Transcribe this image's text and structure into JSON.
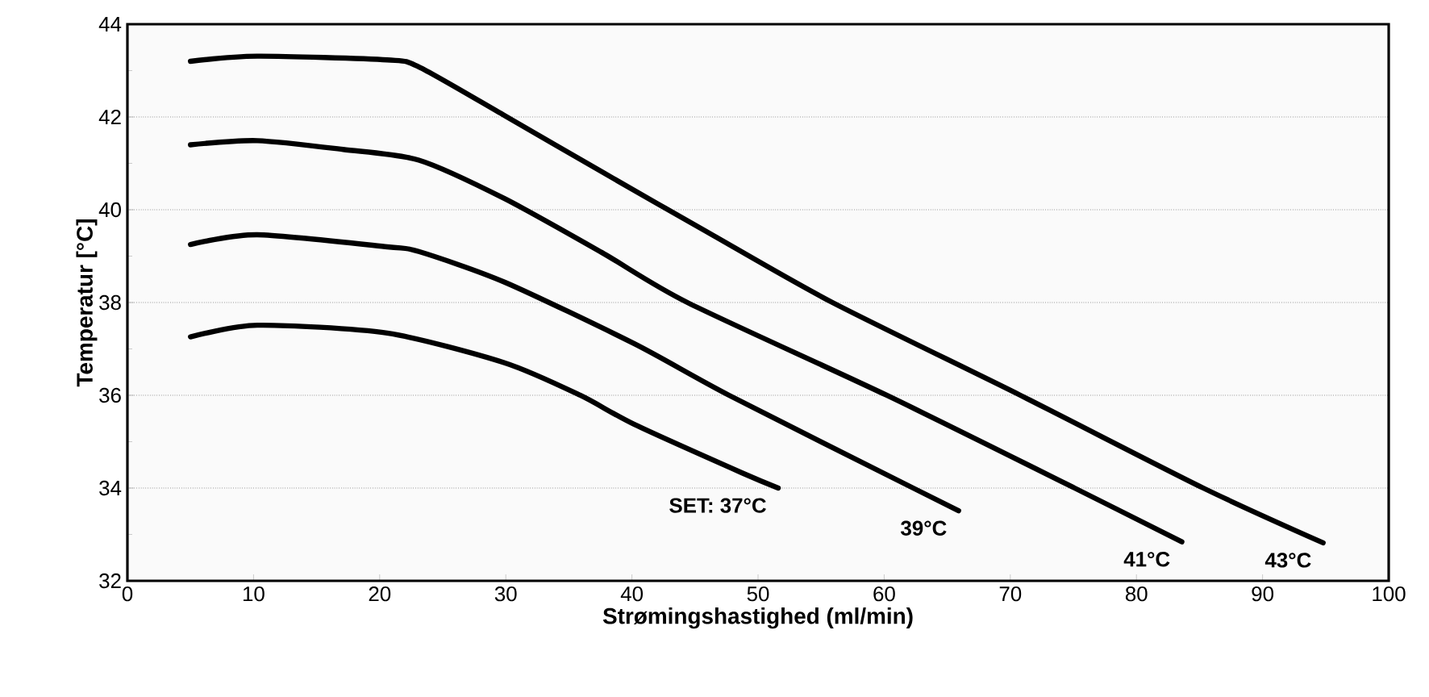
{
  "chart_data": {
    "type": "line",
    "xlabel": "Strømingshastighed (ml/min)",
    "ylabel": "Temperatur [°C]",
    "xlim": [
      0,
      100
    ],
    "ylim": [
      32,
      44
    ],
    "xticks": [
      0,
      10,
      20,
      30,
      40,
      50,
      60,
      70,
      80,
      90,
      100
    ],
    "yticks": [
      32,
      {
        "value": 33,
        "label": null
      },
      34,
      {
        "value": 35,
        "label": null
      },
      36,
      {
        "value": 37,
        "label": null
      },
      38,
      {
        "value": 39,
        "label": null
      },
      40,
      {
        "value": 41,
        "label": null
      },
      42,
      {
        "value": 43,
        "label": null
      },
      44
    ],
    "grid": "y",
    "marker": "none",
    "line_style": "solid",
    "series": [
      {
        "name": "SET: 37°C",
        "color": "#000000",
        "x": [
          5.0,
          10.3,
          20.6,
          29.9,
          35.9,
          40.2,
          48.7,
          51.6
        ],
        "values": [
          37.26,
          37.51,
          37.34,
          36.7,
          36.0,
          35.37,
          34.33,
          34.0
        ]
      },
      {
        "name": "39°C",
        "color": "#000000",
        "x": [
          5.0,
          10.3,
          20.6,
          23.1,
          29.9,
          40.2,
          47.7,
          62.3,
          65.9
        ],
        "values": [
          39.25,
          39.46,
          39.2,
          39.1,
          38.44,
          37.11,
          36.0,
          34.0,
          33.51
        ]
      },
      {
        "name": "41°C",
        "color": "#000000",
        "x": [
          5.0,
          10.3,
          17.1,
          23.1,
          29.9,
          37.6,
          44.4,
          60.2,
          75.1,
          83.6
        ],
        "values": [
          41.4,
          41.49,
          41.3,
          41.07,
          40.24,
          39.08,
          38.0,
          36.0,
          34.0,
          32.84
        ]
      },
      {
        "name": "43°C",
        "color": "#000000",
        "x": [
          5.0,
          10.3,
          20.6,
          23.1,
          29.9,
          37.6,
          46.1,
          55.9,
          70.8,
          85.3,
          94.8
        ],
        "values": [
          43.2,
          43.31,
          43.23,
          43.08,
          42.03,
          40.82,
          39.5,
          38.0,
          36.0,
          34.0,
          32.82
        ]
      }
    ]
  }
}
